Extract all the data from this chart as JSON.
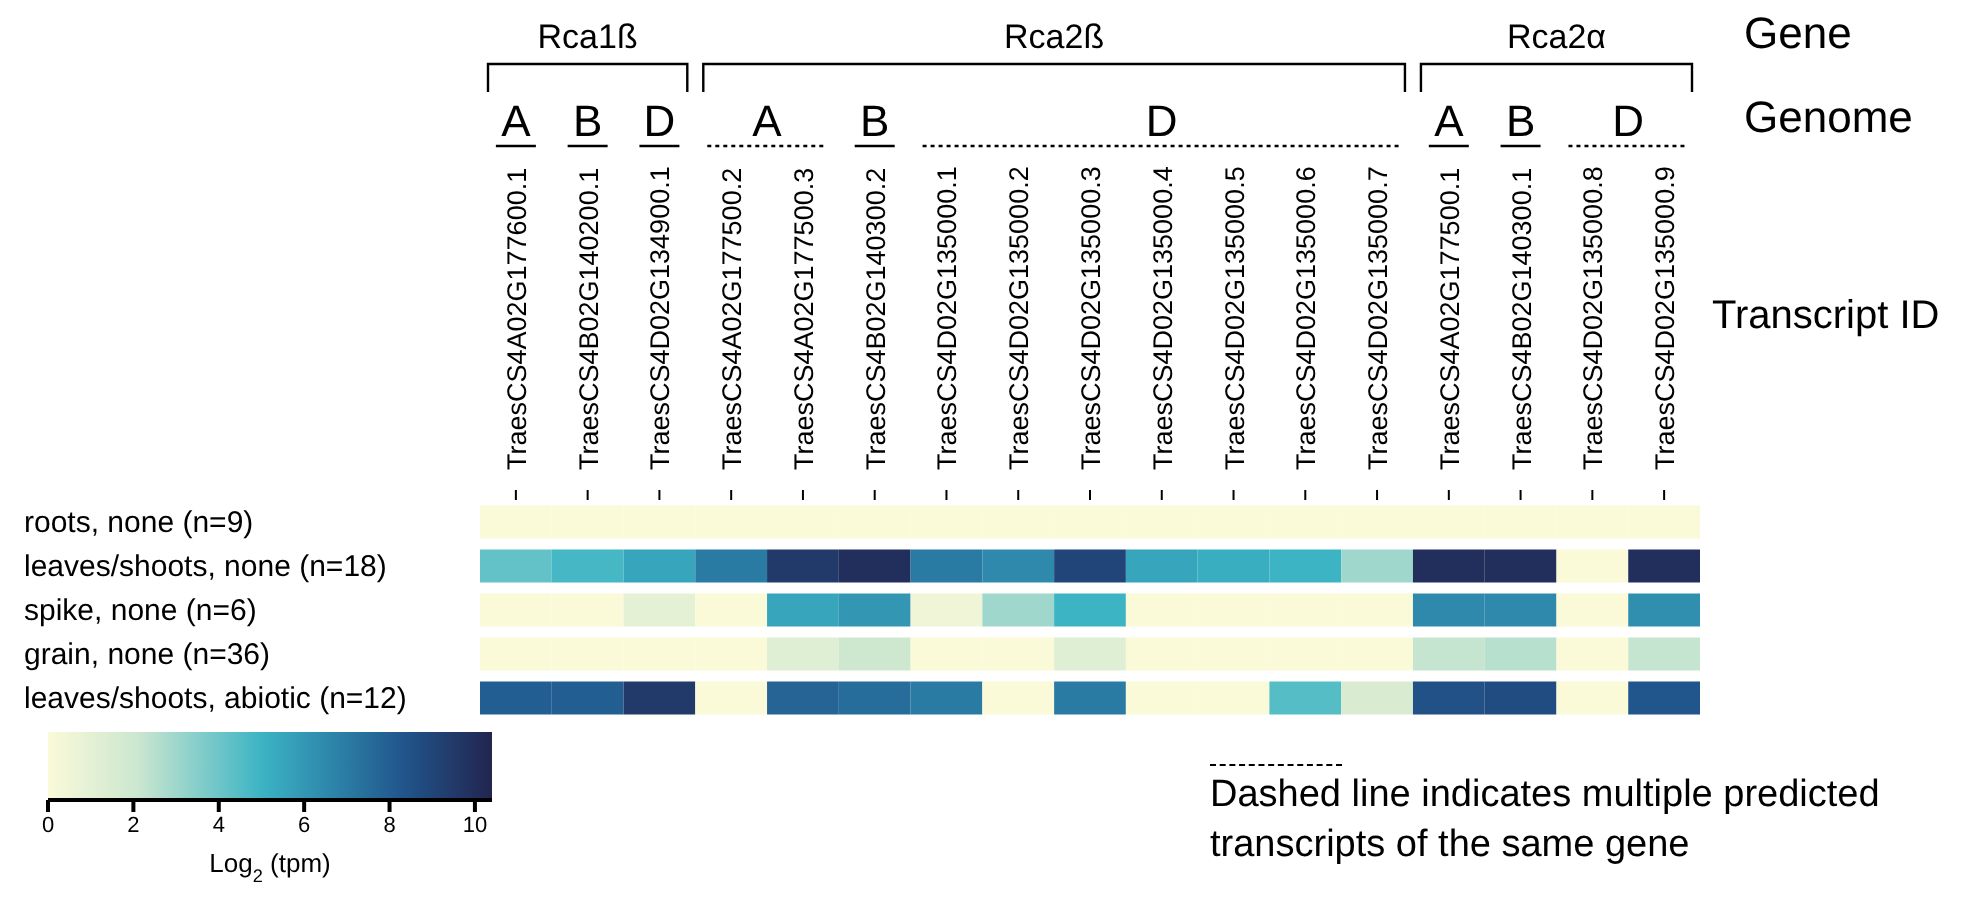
{
  "chart_data": {
    "type": "heatmap",
    "xlabel": "Transcript ID",
    "clabel": "Log$_{2}$ (tpm)",
    "categories": [
      "TraesCS4A02G177600.1",
      "TraesCS4B02G140200.1",
      "TraesCS4D02G134900.1",
      "TraesCS4A02G177500.2",
      "TraesCS4A02G177500.3",
      "TraesCS4B02G140300.2",
      "TraesCS4D02G135000.1",
      "TraesCS4D02G135000.2",
      "TraesCS4D02G135000.3",
      "TraesCS4D02G135000.4",
      "TraesCS4D02G135000.5",
      "TraesCS4D02G135000.6",
      "TraesCS4D02G135000.7",
      "TraesCS4A02G177500.1",
      "TraesCS4B02G140300.1",
      "TraesCS4D02G135000.8",
      "TraesCS4D02G135000.9"
    ],
    "y_categories": [
      "roots, none (n=9)",
      "leaves/shoots, none (n=18)",
      "spike, none (n=6)",
      "grain, none (n=36)",
      "leaves/shoots, abiotic (n=12)"
    ],
    "cells": [
      [
        0,
        0,
        0,
        0,
        0,
        0,
        0,
        0,
        0,
        0,
        0,
        0,
        0,
        0,
        0,
        0,
        0
      ],
      [
        4.2,
        4.8,
        5.5,
        7,
        9.5,
        10,
        7,
        6.5,
        9,
        5.5,
        5.2,
        5,
        3,
        10,
        10,
        0,
        10
      ],
      [
        0,
        0,
        1,
        0,
        5.5,
        6,
        0.5,
        3,
        5,
        0,
        0,
        0,
        0,
        6.5,
        6.5,
        0,
        6.3
      ],
      [
        0,
        0,
        0,
        0,
        1.2,
        2,
        0,
        0,
        1.2,
        0,
        0,
        0,
        0,
        2.2,
        2.5,
        0,
        2.2
      ],
      [
        8,
        8,
        9.5,
        0,
        7.8,
        7.5,
        7,
        0,
        7,
        0,
        0,
        4.5,
        1.5,
        8.5,
        8.7,
        0,
        8.3
      ]
    ],
    "clim": [
      0,
      10.4
    ],
    "cticks": [
      0,
      2,
      4,
      6,
      8,
      10
    ],
    "annotations": [
      "Gene",
      "Genome",
      "Rca1ß",
      "Rca2ß",
      "Rca2α",
      "A",
      "B",
      "D",
      "A",
      "B",
      "D",
      "A",
      "B",
      "D",
      "Dashed line indicates multiple predicted transcripts of the same gene"
    ]
  }
}
